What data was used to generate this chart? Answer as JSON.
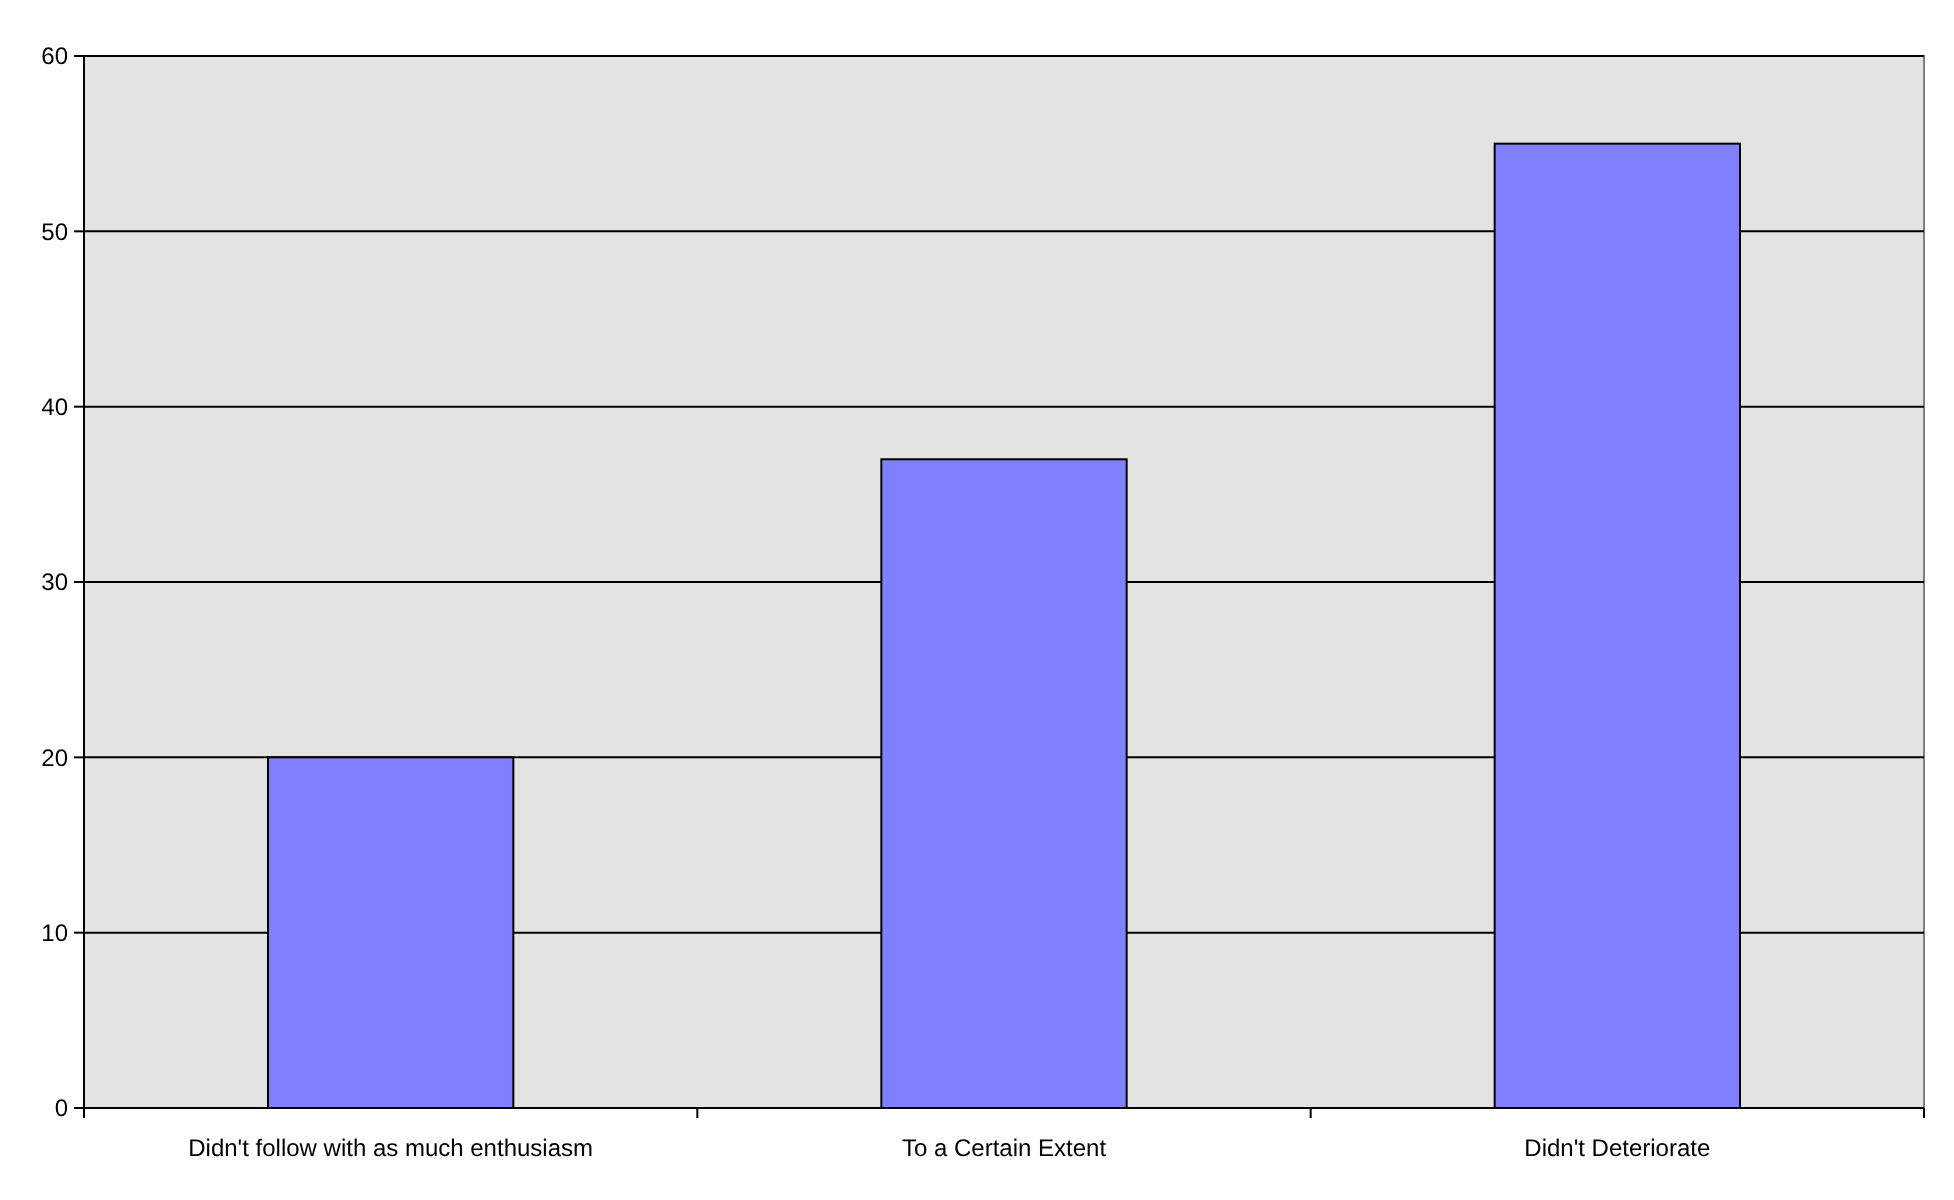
{
  "chart_data": {
    "type": "bar",
    "categories": [
      "Didn't follow with as much enthusiasm",
      "To a Certain Extent",
      "Didn't Deteriorate"
    ],
    "values": [
      20,
      37,
      55
    ],
    "color": "#8080ff",
    "ylim": [
      0,
      60
    ],
    "yticks": [
      0,
      10,
      20,
      30,
      40,
      50,
      60
    ],
    "grid": "y"
  }
}
